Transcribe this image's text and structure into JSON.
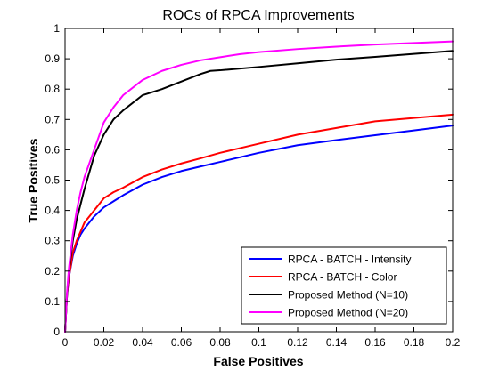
{
  "chart_data": {
    "type": "line",
    "title": "ROCs of RPCA Improvements",
    "xlabel": "False Positives",
    "ylabel": "True Positives",
    "xlim": [
      0,
      0.2
    ],
    "ylim": [
      0,
      1
    ],
    "xticks": [
      0,
      0.02,
      0.04,
      0.06,
      0.08,
      0.1,
      0.12,
      0.14,
      0.16,
      0.18,
      0.2
    ],
    "yticks": [
      0,
      0.1,
      0.2,
      0.3,
      0.4,
      0.5,
      0.6,
      0.7,
      0.8,
      0.9,
      1
    ],
    "xtick_labels": [
      "0",
      "0.02",
      "0.04",
      "0.06",
      "0.08",
      "0.1",
      "0.12",
      "0.14",
      "0.16",
      "0.18",
      "0.2"
    ],
    "ytick_labels": [
      "0",
      "0.1",
      "0.2",
      "0.3",
      "0.4",
      "0.5",
      "0.6",
      "0.7",
      "0.8",
      "0.9",
      "1"
    ],
    "grid": false,
    "legend_position": "bottom-right",
    "series": [
      {
        "name": "RPCA - BATCH - Intensity",
        "color": "#0000ff",
        "x": [
          0,
          0.001,
          0.002,
          0.004,
          0.006,
          0.008,
          0.01,
          0.015,
          0.02,
          0.025,
          0.03,
          0.04,
          0.05,
          0.06,
          0.07,
          0.08,
          0.09,
          0.1,
          0.12,
          0.14,
          0.16,
          0.18,
          0.2
        ],
        "y": [
          0,
          0.12,
          0.18,
          0.25,
          0.29,
          0.32,
          0.34,
          0.38,
          0.41,
          0.43,
          0.45,
          0.485,
          0.51,
          0.53,
          0.545,
          0.56,
          0.575,
          0.59,
          0.615,
          0.632,
          0.648,
          0.664,
          0.68
        ]
      },
      {
        "name": "RPCA - BATCH - Color",
        "color": "#ff0000",
        "x": [
          0,
          0.001,
          0.002,
          0.004,
          0.006,
          0.008,
          0.01,
          0.015,
          0.02,
          0.025,
          0.03,
          0.04,
          0.05,
          0.06,
          0.07,
          0.08,
          0.09,
          0.1,
          0.12,
          0.14,
          0.16,
          0.18,
          0.2
        ],
        "y": [
          0,
          0.12,
          0.18,
          0.26,
          0.3,
          0.33,
          0.36,
          0.4,
          0.44,
          0.46,
          0.475,
          0.51,
          0.535,
          0.555,
          0.572,
          0.59,
          0.605,
          0.62,
          0.65,
          0.672,
          0.694,
          0.705,
          0.716
        ]
      },
      {
        "name": "Proposed Method (N=10)",
        "color": "#000000",
        "x": [
          0,
          0.001,
          0.002,
          0.004,
          0.006,
          0.008,
          0.01,
          0.015,
          0.02,
          0.025,
          0.03,
          0.04,
          0.05,
          0.06,
          0.07,
          0.075,
          0.08,
          0.1,
          0.12,
          0.14,
          0.16,
          0.18,
          0.2
        ],
        "y": [
          0,
          0.12,
          0.2,
          0.3,
          0.37,
          0.42,
          0.47,
          0.58,
          0.65,
          0.7,
          0.73,
          0.78,
          0.8,
          0.825,
          0.85,
          0.86,
          0.862,
          0.873,
          0.885,
          0.897,
          0.906,
          0.916,
          0.926
        ]
      },
      {
        "name": "Proposed Method (N=20)",
        "color": "#ff00ff",
        "x": [
          0,
          0.001,
          0.002,
          0.004,
          0.006,
          0.008,
          0.01,
          0.015,
          0.02,
          0.025,
          0.03,
          0.04,
          0.05,
          0.06,
          0.07,
          0.08,
          0.09,
          0.1,
          0.12,
          0.14,
          0.16,
          0.18,
          0.2
        ],
        "y": [
          0,
          0.13,
          0.21,
          0.32,
          0.4,
          0.46,
          0.51,
          0.6,
          0.69,
          0.74,
          0.78,
          0.83,
          0.86,
          0.88,
          0.895,
          0.905,
          0.915,
          0.922,
          0.932,
          0.94,
          0.947,
          0.952,
          0.957
        ]
      }
    ]
  }
}
